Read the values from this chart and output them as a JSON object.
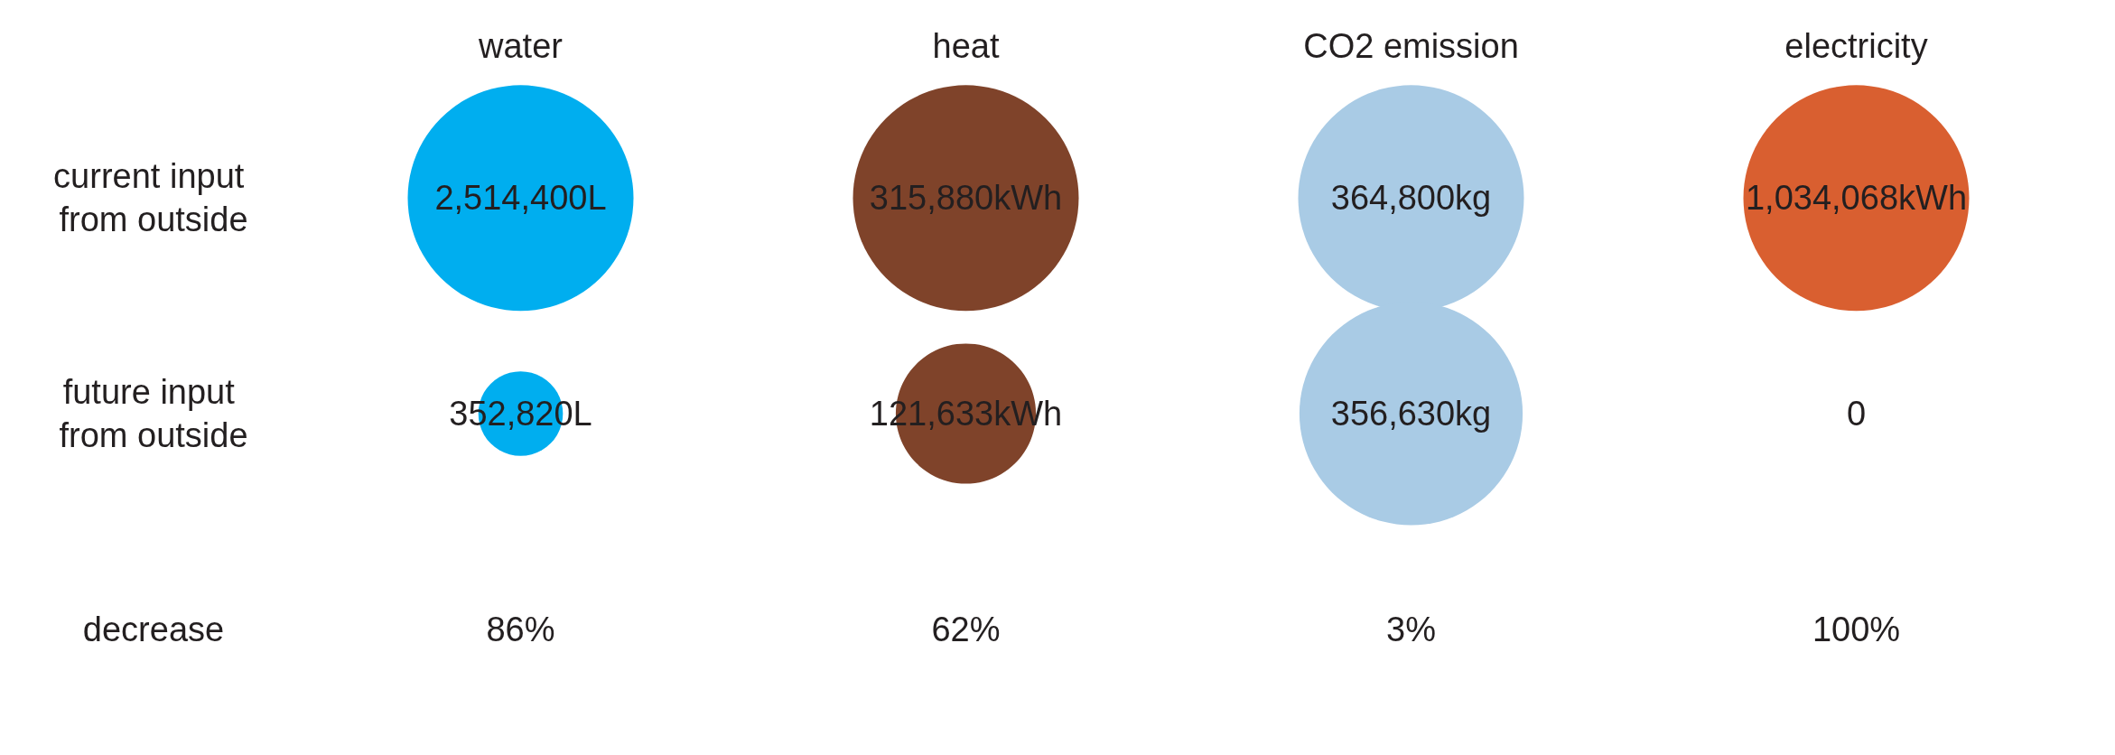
{
  "chart_data": {
    "type": "other",
    "categories": [
      "water",
      "heat",
      "CO2 emission",
      "electricity"
    ],
    "y_categories": [
      "current input from outside",
      "future input from outside",
      "decrease"
    ],
    "series": [
      {
        "marker": "circle",
        "colors": [
          "#00aeef",
          "#7f432a",
          "#a9cbe5",
          "#d95f30"
        ],
        "values": [
          2514400,
          315880,
          364800,
          1034068
        ],
        "value_labels": [
          "2,514,400L",
          "315,880kWh",
          "364,800kg",
          "1,034,068kWh"
        ]
      },
      {
        "marker": "circle",
        "colors": [
          "#00aeef",
          "#7f432a",
          "#a9cbe5",
          "#d95f30"
        ],
        "values": [
          352820,
          121633,
          356630,
          0
        ],
        "value_labels": [
          "352,820L",
          "121,633kWh",
          "356,630kg",
          "0"
        ]
      },
      {
        "marker": "none",
        "values": [
          86,
          62,
          3,
          100
        ],
        "value_labels": [
          "86%",
          "62%",
          "3%",
          "100%"
        ]
      }
    ]
  }
}
